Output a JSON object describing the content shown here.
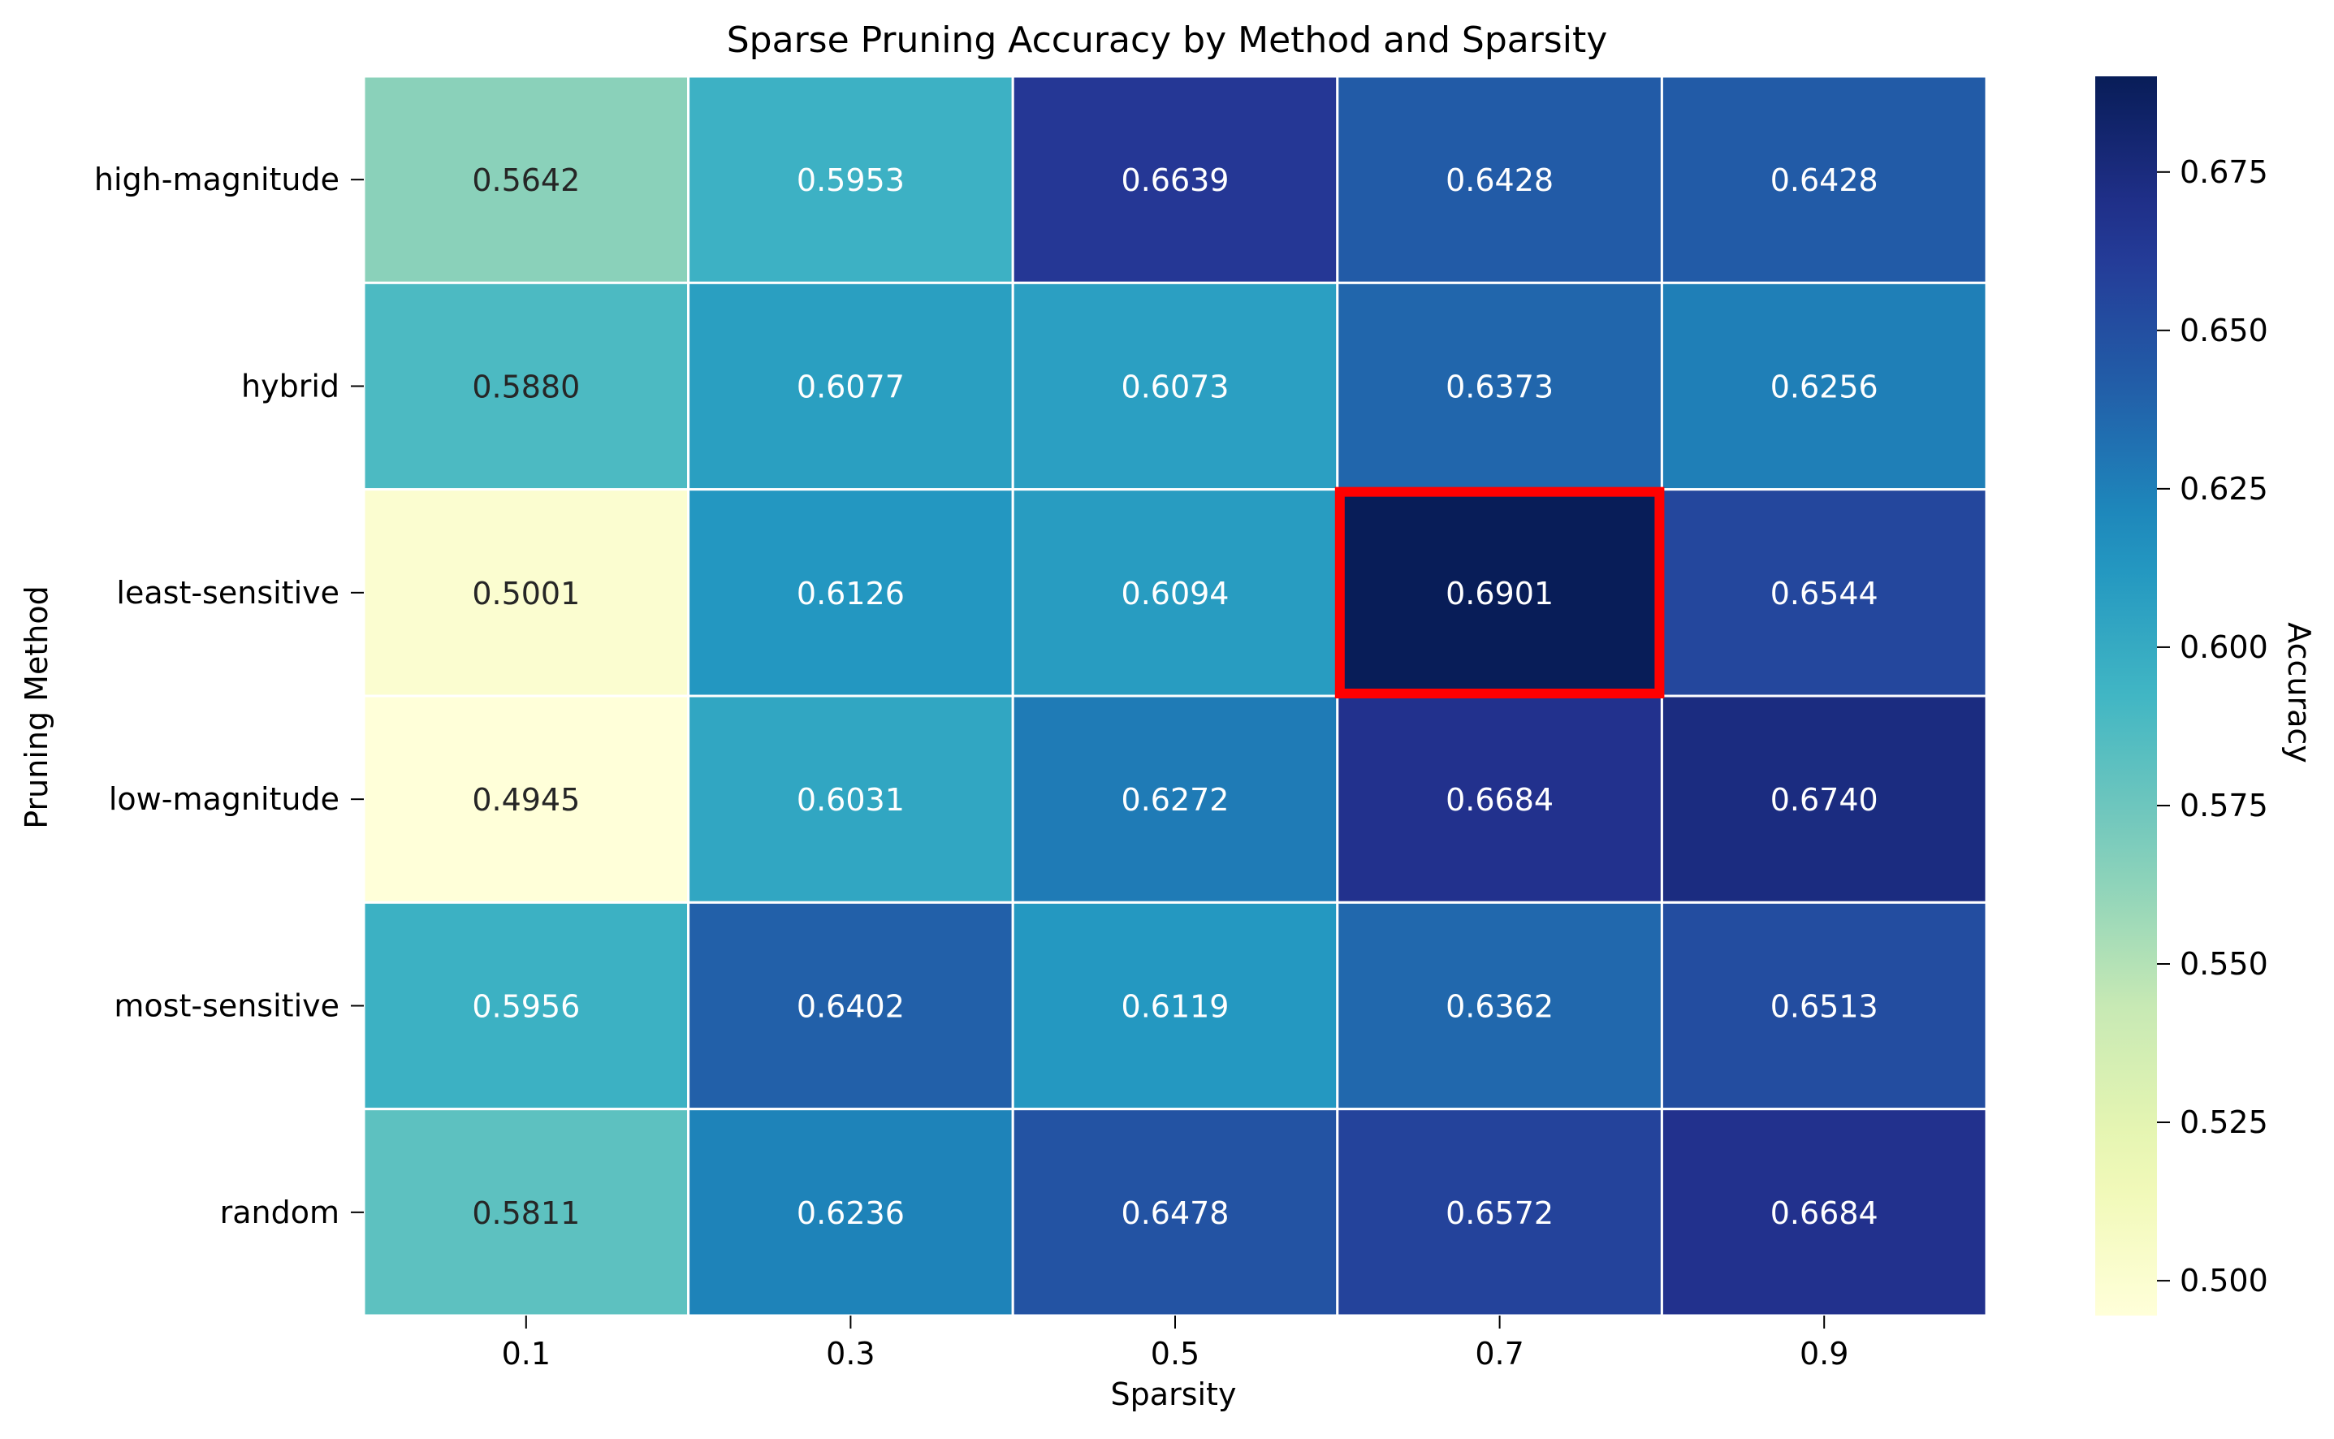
{
  "chart_data": {
    "type": "heatmap",
    "title": "Sparse Pruning Accuracy by Method and Sparsity",
    "xlabel": "Sparsity",
    "ylabel": "Pruning Method",
    "x_categories": [
      "0.1",
      "0.3",
      "0.5",
      "0.7",
      "0.9"
    ],
    "y_categories": [
      "high-magnitude",
      "hybrid",
      "least-sensitive",
      "low-magnitude",
      "most-sensitive",
      "random"
    ],
    "values": [
      [
        0.5642,
        0.5953,
        0.6639,
        0.6428,
        0.6428
      ],
      [
        0.588,
        0.6077,
        0.6073,
        0.6373,
        0.6256
      ],
      [
        0.5001,
        0.6126,
        0.6094,
        0.6901,
        0.6544
      ],
      [
        0.4945,
        0.6031,
        0.6272,
        0.6684,
        0.674
      ],
      [
        0.5956,
        0.6402,
        0.6119,
        0.6362,
        0.6513
      ],
      [
        0.5811,
        0.6236,
        0.6478,
        0.6572,
        0.6684
      ]
    ],
    "value_format": "4 decimals",
    "highlight": {
      "row": "least-sensitive",
      "column": "0.7",
      "color": "#ff0000"
    },
    "colormap": "YlGnBu",
    "colorbar": {
      "label": "Accuracy",
      "range": [
        0.4945,
        0.6901
      ],
      "ticks": [
        "0.500",
        "0.525",
        "0.550",
        "0.575",
        "0.600",
        "0.625",
        "0.650",
        "0.675"
      ]
    },
    "grid": false,
    "cell_border_color": "#ffffff"
  }
}
